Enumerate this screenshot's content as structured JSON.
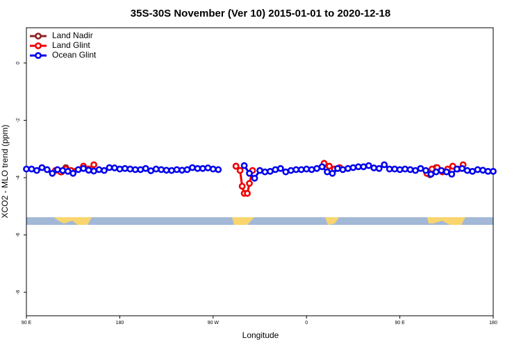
{
  "chart_data": {
    "type": "line",
    "title": "35S-30S November (Ver 10)   2015-01-01 to 2020-12-18",
    "x_label": "Longitude",
    "y_label": "XCO2 - MLO trend (ppm)",
    "xlim": [
      90,
      540
    ],
    "ylim": [
      -8.82,
      1.23
    ],
    "xticks": [
      {
        "value": 90,
        "label": "90 E"
      },
      {
        "value": 180,
        "label": "180"
      },
      {
        "value": 270,
        "label": "90 W"
      },
      {
        "value": 360,
        "label": "0"
      },
      {
        "value": 450,
        "label": "90 E"
      },
      {
        "value": 540,
        "label": "180"
      }
    ],
    "yticks": [
      0,
      -2,
      -4,
      -6,
      -8
    ],
    "legend": "top-left",
    "series": [
      {
        "name": "Land Nadir",
        "color": "#8b2323",
        "x": [
          124,
          128,
          null,
          292,
          null,
          377,
          null,
          479,
          485
        ],
        "values": [
          -3.8,
          -3.65,
          null,
          -3.6,
          null,
          -3.55,
          null,
          -3.9,
          -3.65
        ]
      },
      {
        "name": "Land Glint",
        "color": "#ee0000",
        "x": [
          118,
          123,
          128,
          133,
          145,
          150,
          155,
          null,
          292,
          296,
          298,
          300,
          303,
          305,
          308,
          null,
          377,
          382,
          387,
          392,
          null,
          476,
          481,
          486,
          491,
          496,
          501,
          506,
          511
        ],
        "values": [
          -3.75,
          -3.8,
          -3.7,
          -3.75,
          -3.6,
          -3.7,
          -3.55,
          null,
          -3.6,
          -3.75,
          -4.3,
          -4.55,
          -4.55,
          -4.2,
          -3.75,
          null,
          -3.5,
          -3.6,
          -3.7,
          -3.65,
          null,
          -3.85,
          -3.7,
          -3.65,
          -3.8,
          -3.7,
          -3.6,
          -3.7,
          -3.55
        ]
      },
      {
        "name": "Ocean Glint",
        "color": "#0000ee",
        "x": [
          90,
          95,
          100,
          105,
          110,
          115,
          120,
          125,
          130,
          135,
          140,
          145,
          150,
          155,
          160,
          165,
          170,
          175,
          180,
          185,
          190,
          195,
          200,
          205,
          210,
          215,
          220,
          225,
          230,
          235,
          240,
          245,
          250,
          255,
          260,
          265,
          270,
          275,
          null,
          300,
          305,
          310,
          315,
          320,
          325,
          330,
          335,
          340,
          345,
          350,
          355,
          360,
          365,
          370,
          375,
          380,
          385,
          390,
          395,
          400,
          405,
          410,
          415,
          420,
          425,
          430,
          435,
          440,
          445,
          450,
          455,
          460,
          465,
          470,
          475,
          480,
          485,
          490,
          495,
          500,
          505,
          510,
          515,
          520,
          525,
          530,
          535,
          540
        ],
        "values": [
          -3.7,
          -3.7,
          -3.75,
          -3.65,
          -3.72,
          -3.85,
          -3.72,
          -3.75,
          -3.78,
          -3.85,
          -3.72,
          -3.68,
          -3.74,
          -3.77,
          -3.72,
          -3.75,
          -3.65,
          -3.66,
          -3.7,
          -3.68,
          -3.7,
          -3.72,
          -3.72,
          -3.68,
          -3.76,
          -3.7,
          -3.72,
          -3.74,
          -3.75,
          -3.72,
          -3.74,
          -3.72,
          -3.65,
          -3.68,
          -3.68,
          -3.66,
          -3.7,
          -3.72,
          null,
          -3.58,
          -3.85,
          -4.02,
          -3.75,
          -3.8,
          -3.78,
          -3.72,
          -3.68,
          -3.8,
          -3.75,
          -3.72,
          -3.72,
          -3.7,
          -3.72,
          -3.68,
          -3.62,
          -3.8,
          -3.85,
          -3.68,
          -3.72,
          -3.68,
          -3.65,
          -3.62,
          -3.62,
          -3.58,
          -3.66,
          -3.68,
          -3.55,
          -3.7,
          -3.7,
          -3.72,
          -3.7,
          -3.72,
          -3.75,
          -3.68,
          -3.75,
          -3.88,
          -3.8,
          -3.75,
          -3.8,
          -3.88,
          -3.7,
          -3.68,
          -3.75,
          -3.78,
          -3.72,
          -3.74,
          -3.78,
          -3.78
        ]
      }
    ]
  }
}
